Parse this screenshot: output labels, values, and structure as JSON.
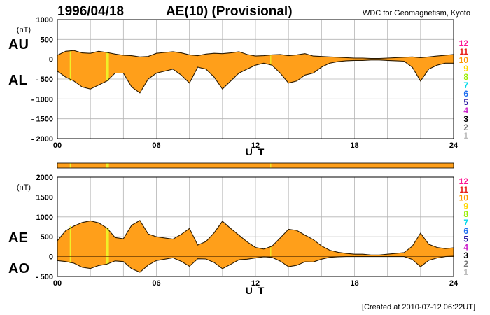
{
  "header": {
    "date": "1996/04/18",
    "index_title": "AE(10) (Provisional)",
    "source": "WDC for Geomagnetism, Kyoto"
  },
  "footer": {
    "created": "[Created at 2010-07-12 06:22UT]"
  },
  "level_legend": [
    {
      "label": "12",
      "color": "#ff1493"
    },
    {
      "label": "11",
      "color": "#e8201a"
    },
    {
      "label": "10",
      "color": "#ff9900"
    },
    {
      "label": "9",
      "color": "#ffd700"
    },
    {
      "label": "8",
      "color": "#99ee00"
    },
    {
      "label": "7",
      "color": "#00d8e8"
    },
    {
      "label": "6",
      "color": "#1e6ef0"
    },
    {
      "label": "5",
      "color": "#2a1aa0"
    },
    {
      "label": "4",
      "color": "#cc22cc"
    },
    {
      "label": "3",
      "color": "#000000"
    },
    {
      "label": "2",
      "color": "#777777"
    },
    {
      "label": "1",
      "color": "#bbbbbb"
    }
  ],
  "colors": {
    "fill": "#ff9f1a",
    "highlight": "#f0f028",
    "line": "#2b1a00",
    "grid": "#b4b4b4"
  },
  "chart_data": [
    {
      "type": "area",
      "title": "AU / AL",
      "series_labels": [
        "AU",
        "AL"
      ],
      "xlabel": "U T",
      "x_tick_labels": [
        "00",
        "06",
        "12",
        "18",
        "24"
      ],
      "xlim": [
        0,
        24
      ],
      "ylim": [
        -2000,
        1000
      ],
      "y_unit": "(nT)",
      "y_tick_labels": [
        {
          "value": 1000,
          "label": "1000"
        },
        {
          "value": 500,
          "label": "500"
        },
        {
          "value": 0,
          "label": "0"
        },
        {
          "value": -500,
          "label": "- 500"
        },
        {
          "value": -1000,
          "label": "- 1000"
        },
        {
          "value": -1500,
          "label": "- 1500"
        },
        {
          "value": -2000,
          "label": "- 2000"
        }
      ],
      "hours": [
        0,
        0.5,
        1,
        1.5,
        2,
        2.5,
        3,
        3.5,
        4,
        4.5,
        5,
        5.5,
        6,
        6.5,
        7,
        7.5,
        8,
        8.5,
        9,
        9.5,
        10,
        10.5,
        11,
        11.5,
        12,
        12.5,
        13,
        13.5,
        14,
        14.5,
        15,
        15.5,
        16,
        16.5,
        17,
        17.5,
        18,
        18.5,
        19,
        19.5,
        20,
        20.5,
        21,
        21.5,
        22,
        22.5,
        23,
        23.5,
        24
      ],
      "series": [
        {
          "name": "AU",
          "values": [
            100,
            200,
            220,
            160,
            150,
            200,
            170,
            130,
            100,
            90,
            60,
            70,
            150,
            170,
            190,
            160,
            110,
            90,
            130,
            150,
            140,
            160,
            190,
            120,
            80,
            90,
            110,
            120,
            90,
            110,
            140,
            80,
            70,
            60,
            50,
            40,
            30,
            30,
            20,
            20,
            30,
            40,
            50,
            60,
            40,
            60,
            80,
            100,
            120
          ]
        },
        {
          "name": "AL",
          "values": [
            -300,
            -450,
            -550,
            -700,
            -750,
            -650,
            -550,
            -350,
            -350,
            -700,
            -850,
            -500,
            -350,
            -300,
            -250,
            -400,
            -600,
            -200,
            -250,
            -450,
            -750,
            -550,
            -350,
            -250,
            -150,
            -100,
            -150,
            -350,
            -600,
            -550,
            -400,
            -350,
            -200,
            -100,
            -60,
            -40,
            -30,
            -30,
            -20,
            -20,
            -30,
            -40,
            -50,
            -200,
            -550,
            -250,
            -150,
            -100,
            -100
          ]
        }
      ]
    },
    {
      "type": "area",
      "title": "AE / AO",
      "series_labels": [
        "AE",
        "AO"
      ],
      "xlabel": "U T",
      "x_tick_labels": [
        "00",
        "06",
        "12",
        "18",
        "24"
      ],
      "xlim": [
        0,
        24
      ],
      "ylim": [
        -500,
        2000
      ],
      "y_unit": "(nT)",
      "y_tick_labels": [
        {
          "value": 2000,
          "label": "2000"
        },
        {
          "value": 1500,
          "label": "1500"
        },
        {
          "value": 1000,
          "label": "1000"
        },
        {
          "value": 500,
          "label": "500"
        },
        {
          "value": 0,
          "label": "0"
        },
        {
          "value": -500,
          "label": "- 500"
        }
      ],
      "hours": [
        0,
        0.5,
        1,
        1.5,
        2,
        2.5,
        3,
        3.5,
        4,
        4.5,
        5,
        5.5,
        6,
        6.5,
        7,
        7.5,
        8,
        8.5,
        9,
        9.5,
        10,
        10.5,
        11,
        11.5,
        12,
        12.5,
        13,
        13.5,
        14,
        14.5,
        15,
        15.5,
        16,
        16.5,
        17,
        17.5,
        18,
        18.5,
        19,
        19.5,
        20,
        20.5,
        21,
        21.5,
        22,
        22.5,
        23,
        23.5,
        24
      ],
      "series": [
        {
          "name": "AE",
          "values": [
            400,
            650,
            770,
            860,
            900,
            850,
            720,
            480,
            450,
            790,
            910,
            570,
            500,
            470,
            440,
            560,
            710,
            290,
            380,
            600,
            890,
            710,
            540,
            370,
            230,
            190,
            260,
            470,
            690,
            660,
            540,
            430,
            270,
            160,
            110,
            80,
            60,
            60,
            40,
            40,
            60,
            80,
            100,
            260,
            590,
            310,
            230,
            200,
            220
          ]
        },
        {
          "name": "AO",
          "values": [
            -100,
            -125,
            -165,
            -270,
            -300,
            -225,
            -190,
            -110,
            -125,
            -305,
            -395,
            -215,
            -100,
            -65,
            -30,
            -120,
            -245,
            -55,
            -60,
            -150,
            -305,
            -195,
            -80,
            -65,
            -35,
            -5,
            -20,
            -115,
            -255,
            -220,
            -130,
            -135,
            -65,
            -20,
            -5,
            0,
            0,
            0,
            0,
            0,
            0,
            0,
            0,
            -70,
            -255,
            -95,
            -35,
            0,
            10
          ]
        }
      ]
    }
  ]
}
